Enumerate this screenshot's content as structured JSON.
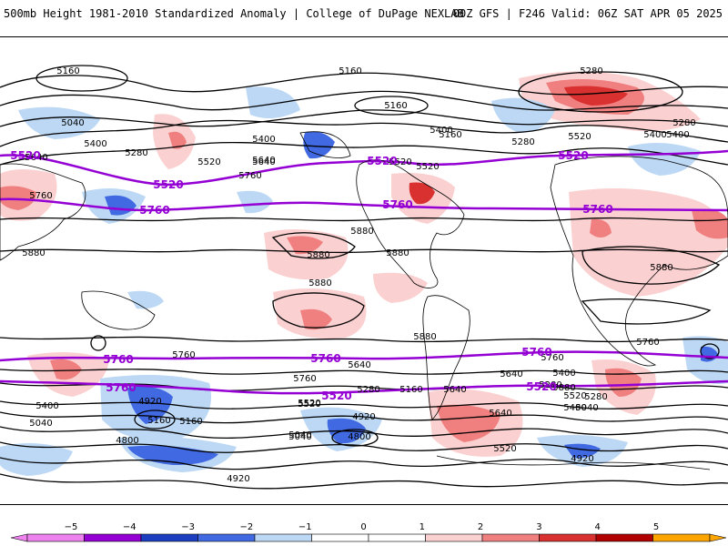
{
  "header": {
    "title_left": "500mb Height 1981-2010 Standardized Anomaly | College of DuPage NEXLAB",
    "title_right": "00Z GFS | F246 Valid: 06Z SAT APR 05 2025"
  },
  "colors": {
    "neg5": "#ee82ee",
    "neg4": "#9400d3",
    "neg3": "#1c3fbf",
    "neg2": "#4169e1",
    "neg1": "#bcd8f5",
    "zero": "#ffffff",
    "pos1": "#fbd0d0",
    "pos2": "#f08080",
    "pos3": "#d93030",
    "pos4": "#b00000",
    "pos5": "#ffa500",
    "reference_contour": "#9400d3",
    "height_contour": "#000000"
  },
  "colorbar": {
    "ticks": [
      "−5",
      "−4",
      "−3",
      "−2",
      "−1",
      "0",
      "1",
      "2",
      "3",
      "4",
      "5"
    ]
  },
  "contour_labels": {
    "height": [
      "5160",
      "5160",
      "5280",
      "5040",
      "5400",
      "5280",
      "5520",
      "5640",
      "5400",
      "5160",
      "5400",
      "5280",
      "5160",
      "5400",
      "5520",
      "5280",
      "5520",
      "5640",
      "5520",
      "5400",
      "5640",
      "5760",
      "5760",
      "5880",
      "5880",
      "5880",
      "5880",
      "5880",
      "5880",
      "5880",
      "5760",
      "5640",
      "5760",
      "5880",
      "5640",
      "5760",
      "5640",
      "5760",
      "5400",
      "5280",
      "5400",
      "5160",
      "5520",
      "5280",
      "5520",
      "5160",
      "5400",
      "5040",
      "4920",
      "5040",
      "5160",
      "5040",
      "5280",
      "4920",
      "4800",
      "4800",
      "4920",
      "4920",
      "5040",
      "5520",
      "5640",
      "5520"
    ],
    "reference": [
      "5520",
      "5520",
      "5520",
      "5760",
      "5760",
      "5520",
      "5760",
      "5760",
      "5760",
      "5760",
      "5760",
      "5520",
      "5520"
    ]
  }
}
